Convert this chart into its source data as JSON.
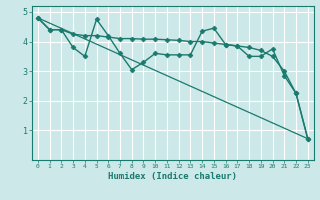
{
  "title": "",
  "xlabel": "Humidex (Indice chaleur)",
  "ylabel": "",
  "xlim": [
    -0.5,
    23.5
  ],
  "ylim": [
    0,
    5.2
  ],
  "yticks": [
    1,
    2,
    3,
    4,
    5
  ],
  "xticks": [
    0,
    1,
    2,
    3,
    4,
    5,
    6,
    7,
    8,
    9,
    10,
    11,
    12,
    13,
    14,
    15,
    16,
    17,
    18,
    19,
    20,
    21,
    22,
    23
  ],
  "bg_color": "#cde8e8",
  "line_color": "#1a7a6e",
  "grid_color": "#ffffff",
  "series": [
    {
      "x": [
        0,
        1,
        2,
        3,
        4,
        5,
        6,
        7,
        8,
        9,
        10,
        11,
        12,
        13,
        14,
        15,
        16,
        17,
        18,
        19,
        20,
        21,
        22,
        23
      ],
      "y": [
        4.8,
        4.4,
        4.4,
        3.8,
        3.5,
        4.75,
        4.2,
        3.6,
        3.05,
        3.3,
        3.6,
        3.55,
        3.55,
        3.55,
        4.35,
        4.45,
        3.9,
        3.85,
        3.5,
        3.5,
        3.75,
        2.85,
        2.25,
        0.72
      ],
      "marker": "D",
      "markersize": 2.5,
      "linewidth": 1.0
    },
    {
      "x": [
        0,
        1,
        2,
        3,
        4,
        5,
        6,
        7,
        8,
        9,
        10,
        11,
        12,
        13,
        14,
        15,
        16,
        17,
        18,
        19,
        20,
        21,
        22,
        23
      ],
      "y": [
        4.8,
        4.4,
        4.4,
        4.25,
        4.2,
        4.2,
        4.15,
        4.1,
        4.1,
        4.08,
        4.08,
        4.06,
        4.04,
        4.0,
        4.0,
        3.95,
        3.9,
        3.85,
        3.8,
        3.7,
        3.5,
        3.0,
        2.25,
        0.72
      ],
      "marker": "D",
      "markersize": 2.5,
      "linewidth": 1.0
    },
    {
      "x": [
        0,
        23
      ],
      "y": [
        4.8,
        0.72
      ],
      "marker": null,
      "markersize": 0,
      "linewidth": 0.9
    }
  ]
}
